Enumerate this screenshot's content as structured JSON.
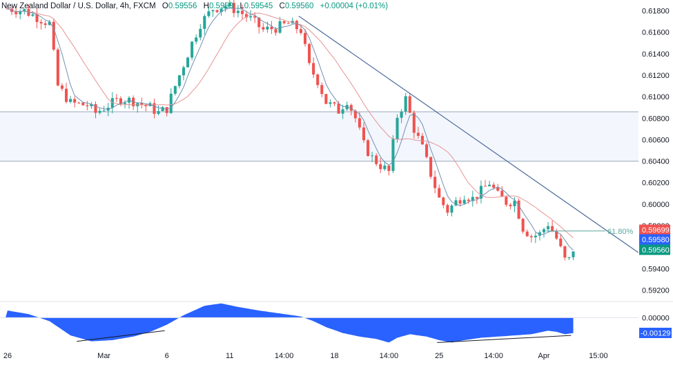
{
  "header": {
    "symbol": "New Zealand Dollar / U.S. Dollar, 4h, FXCM",
    "o_label": "O",
    "o_value": "0.59556",
    "h_label": "H",
    "h_value": "0.5959",
    "l_label": "L",
    "l_value": "0.59545",
    "c_label": "C",
    "c_value": "0.59560",
    "change": "+0.00004 (+0.01%)"
  },
  "colors": {
    "up": "#26a69a",
    "down": "#ef5350",
    "ma_fast": "#6f8fb2",
    "ma_slow": "#e79393",
    "trendline": "#4a6a9a",
    "zone": "#f3f6fd",
    "zone_border": "#9aa7b8",
    "fib": "#5aa89c",
    "osc": "#2962ff",
    "text": "#131722",
    "grid_text": "#131722"
  },
  "chart_data": [
    {
      "type": "candlestick",
      "price_scale": {
        "ylim": [
          0.591,
          0.619
        ],
        "tick_labels": [
          "0.61800",
          "0.61600",
          "0.61400",
          "0.61200",
          "0.61000",
          "0.60800",
          "0.60600",
          "0.60400",
          "0.60200",
          "0.60000",
          "0.59800",
          "0.59400",
          "0.59200"
        ]
      },
      "x_axis": {
        "tick_labels": [
          {
            "label": "26",
            "bar": 0
          },
          {
            "label": "Mar",
            "bar": 23
          },
          {
            "label": "6",
            "bar": 38
          },
          {
            "label": "11",
            "bar": 53
          },
          {
            "label": "14:00",
            "bar": 66
          },
          {
            "label": "18",
            "bar": 78
          },
          {
            "label": "14:00",
            "bar": 91
          },
          {
            "label": "25",
            "bar": 103
          },
          {
            "label": "14:00",
            "bar": 116
          },
          {
            "label": "Apr",
            "bar": 128
          },
          {
            "label": "15:00",
            "bar": 141
          }
        ]
      },
      "waypoints": [
        [
          0,
          0.6182
        ],
        [
          4,
          0.618
        ],
        [
          8,
          0.6172
        ],
        [
          10,
          0.6168
        ],
        [
          12,
          0.611
        ],
        [
          15,
          0.6094
        ],
        [
          19,
          0.6092
        ],
        [
          21,
          0.6085
        ],
        [
          24,
          0.6092
        ],
        [
          27,
          0.6098
        ],
        [
          30,
          0.6096
        ],
        [
          34,
          0.609
        ],
        [
          36,
          0.6085
        ],
        [
          38,
          0.6089
        ],
        [
          40,
          0.611
        ],
        [
          42,
          0.613
        ],
        [
          44,
          0.615
        ],
        [
          46,
          0.6168
        ],
        [
          49,
          0.6182
        ],
        [
          52,
          0.6185
        ],
        [
          55,
          0.618
        ],
        [
          58,
          0.6172
        ],
        [
          61,
          0.6162
        ],
        [
          64,
          0.6164
        ],
        [
          67,
          0.6168
        ],
        [
          70,
          0.6162
        ],
        [
          71,
          0.6145
        ],
        [
          72,
          0.6128
        ],
        [
          74,
          0.6115
        ],
        [
          76,
          0.6095
        ],
        [
          79,
          0.6087
        ],
        [
          81,
          0.6097
        ],
        [
          83,
          0.608
        ],
        [
          85,
          0.6055
        ],
        [
          87,
          0.6043
        ],
        [
          89,
          0.6036
        ],
        [
          91,
          0.603
        ],
        [
          93,
          0.6082
        ],
        [
          95,
          0.6098
        ],
        [
          97,
          0.607
        ],
        [
          99,
          0.6052
        ],
        [
          101,
          0.6028
        ],
        [
          103,
          0.6005
        ],
        [
          105,
          0.5994
        ],
        [
          107,
          0.6002
        ],
        [
          109,
          0.6009
        ],
        [
          111,
          0.6005
        ],
        [
          113,
          0.6012
        ],
        [
          115,
          0.602
        ],
        [
          117,
          0.6008
        ],
        [
          119,
          0.6002
        ],
        [
          121,
          0.6003
        ],
        [
          123,
          0.5978
        ],
        [
          125,
          0.597
        ],
        [
          127,
          0.5972
        ],
        [
          129,
          0.5982
        ],
        [
          131,
          0.5968
        ],
        [
          133,
          0.5948
        ],
        [
          134,
          0.5948
        ],
        [
          135,
          0.5956
        ]
      ],
      "moving_averages": [
        {
          "name": "fast",
          "period": 5
        },
        {
          "name": "slow",
          "period": 14
        }
      ],
      "horizontal_zone": {
        "from": 0.604,
        "to": 0.6086
      },
      "trendline": {
        "from": {
          "bar": 70,
          "price": 0.6175
        },
        "to": {
          "bar": 151,
          "price": 0.5955
        }
      },
      "fib_level": {
        "label": "61.80%",
        "price": 0.5975,
        "from_bar": 129
      },
      "price_badges": [
        {
          "value": "0.59699",
          "price": 0.59699,
          "color": "#ef5350"
        },
        {
          "value": "0.59580",
          "price": 0.5958,
          "color": "#2962ff"
        },
        {
          "value": "0.59560",
          "price": 0.5956,
          "color": "#089981"
        }
      ]
    },
    {
      "type": "area",
      "name": "oscillator",
      "ylim": [
        -0.0026,
        0.0013
      ],
      "tick_labels": [
        "0.00000"
      ],
      "current_value": "-0.00129",
      "waypoints": [
        [
          0,
          0.0006
        ],
        [
          5,
          0.0003
        ],
        [
          10,
          -0.0003
        ],
        [
          15,
          -0.0015
        ],
        [
          20,
          -0.002
        ],
        [
          25,
          -0.0019
        ],
        [
          30,
          -0.0016
        ],
        [
          34,
          -0.0012
        ],
        [
          38,
          -0.0006
        ],
        [
          42,
          0.0002
        ],
        [
          47,
          0.001
        ],
        [
          51,
          0.0012
        ],
        [
          55,
          0.0009
        ],
        [
          60,
          0.0006
        ],
        [
          64,
          0.0004
        ],
        [
          68,
          0.0002
        ],
        [
          70,
          0.0001
        ],
        [
          73,
          -0.0003
        ],
        [
          76,
          -0.0008
        ],
        [
          80,
          -0.0013
        ],
        [
          84,
          -0.0016
        ],
        [
          88,
          -0.0018
        ],
        [
          91,
          -0.0021
        ],
        [
          93,
          -0.0017
        ],
        [
          96,
          -0.0014
        ],
        [
          100,
          -0.0016
        ],
        [
          103,
          -0.0019
        ],
        [
          106,
          -0.0021
        ],
        [
          109,
          -0.0019
        ],
        [
          113,
          -0.0017
        ],
        [
          117,
          -0.0016
        ],
        [
          121,
          -0.0015
        ],
        [
          125,
          -0.0014
        ],
        [
          129,
          -0.0011
        ],
        [
          131,
          -0.0012
        ],
        [
          133,
          -0.0014
        ],
        [
          135,
          -0.0013
        ]
      ],
      "divergence_lines": [
        {
          "from": {
            "bar": 17,
            "value": -0.002
          },
          "to": {
            "bar": 38,
            "value": -0.0011
          }
        },
        {
          "from": {
            "bar": 103,
            "value": -0.0021
          },
          "to": {
            "bar": 135,
            "value": -0.0015
          }
        }
      ]
    }
  ]
}
